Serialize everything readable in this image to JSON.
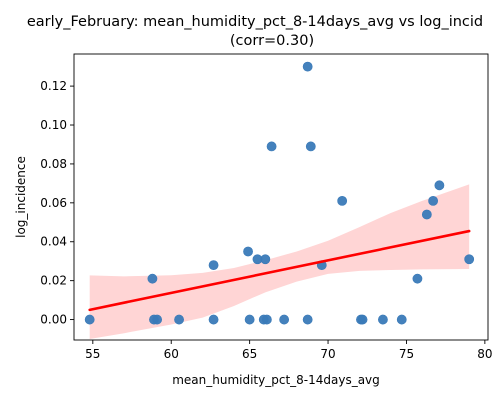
{
  "chart_data": {
    "type": "scatter",
    "title": "early_February: mean_humidity_pct_8-14days_avg vs log_incid",
    "subtitle": "(corr=0.30)",
    "xlabel": "mean_humidity_pct_8-14days_avg",
    "ylabel": "log_incidence",
    "xlim": [
      53.8,
      80.2
    ],
    "ylim": [
      -0.0105,
      0.1365
    ],
    "xticks": [
      55,
      60,
      65,
      70,
      75,
      80
    ],
    "yticks": [
      0.0,
      0.02,
      0.04,
      0.06,
      0.08,
      0.1,
      0.12
    ],
    "grid": false,
    "point_color": "#3a7ab8",
    "line_color": "#ff0000",
    "band_color": "#ffd5d5",
    "points": [
      {
        "x": 54.8,
        "y": 0.0
      },
      {
        "x": 58.8,
        "y": 0.021
      },
      {
        "x": 58.9,
        "y": 0.0
      },
      {
        "x": 59.1,
        "y": 0.0
      },
      {
        "x": 60.5,
        "y": 0.0
      },
      {
        "x": 62.7,
        "y": 0.0
      },
      {
        "x": 62.7,
        "y": 0.028
      },
      {
        "x": 64.9,
        "y": 0.035
      },
      {
        "x": 65.0,
        "y": 0.0
      },
      {
        "x": 65.5,
        "y": 0.031
      },
      {
        "x": 65.9,
        "y": 0.0
      },
      {
        "x": 66.1,
        "y": 0.0
      },
      {
        "x": 66.0,
        "y": 0.031
      },
      {
        "x": 66.4,
        "y": 0.089
      },
      {
        "x": 67.2,
        "y": 0.0
      },
      {
        "x": 68.7,
        "y": 0.0
      },
      {
        "x": 68.7,
        "y": 0.13
      },
      {
        "x": 68.9,
        "y": 0.089
      },
      {
        "x": 69.6,
        "y": 0.028
      },
      {
        "x": 70.9,
        "y": 0.061
      },
      {
        "x": 72.1,
        "y": 0.0
      },
      {
        "x": 72.2,
        "y": 0.0
      },
      {
        "x": 73.5,
        "y": 0.0
      },
      {
        "x": 74.7,
        "y": 0.0
      },
      {
        "x": 75.7,
        "y": 0.021
      },
      {
        "x": 76.3,
        "y": 0.054
      },
      {
        "x": 76.7,
        "y": 0.061
      },
      {
        "x": 77.1,
        "y": 0.069
      },
      {
        "x": 79.0,
        "y": 0.031
      }
    ],
    "regression": {
      "x": [
        54.8,
        79.0
      ],
      "y": [
        0.005,
        0.0455
      ]
    },
    "confidence_band": {
      "x": [
        54.8,
        57.0,
        60.0,
        62.0,
        64.0,
        66.0,
        68.0,
        70.0,
        72.0,
        74.0,
        76.0,
        79.0
      ],
      "upper": [
        0.0227,
        0.0222,
        0.0228,
        0.024,
        0.0265,
        0.0305,
        0.035,
        0.0405,
        0.0475,
        0.0548,
        0.061,
        0.0695
      ],
      "lower": [
        -0.01,
        -0.007,
        -0.0025,
        0.001,
        0.007,
        0.014,
        0.0195,
        0.0235,
        0.025,
        0.0255,
        0.0258,
        0.026
      ]
    }
  }
}
